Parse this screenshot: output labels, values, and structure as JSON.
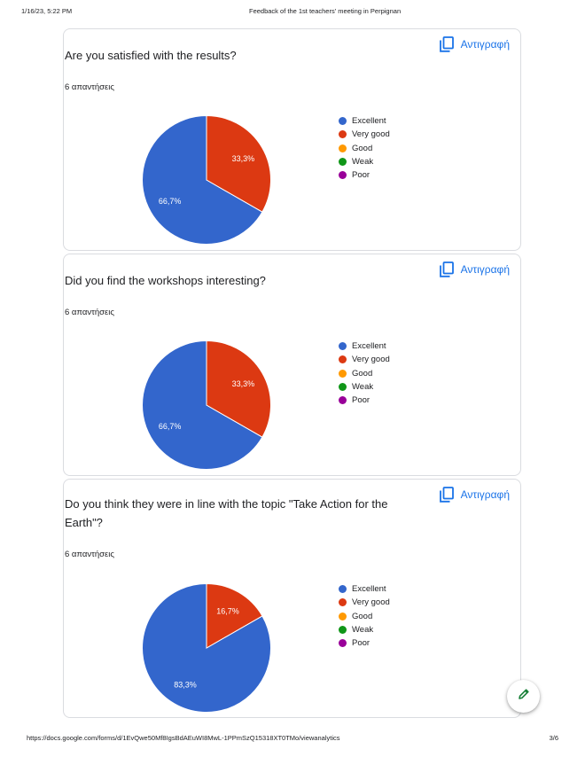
{
  "header": {
    "datetime": "1/16/23, 5:22 PM",
    "doc_title": "Feedback of the 1st teachers' meeting in Perpignan"
  },
  "footer": {
    "url": "https://docs.google.com/forms/d/1EvQwe50Mf8IgsBdAEuWI8MwL-1PPmSzQ15318XT0TMo/viewanalytics",
    "page": "3/6"
  },
  "copy_label": "Αντιγραφή",
  "colors": {
    "Excellent": "#3366cc",
    "Very good": "#dc3912",
    "Good": "#ff9900",
    "Weak": "#109618",
    "Poor": "#990099",
    "copy_accent": "#1a73e8",
    "edit_accent": "#188038"
  },
  "icons": {
    "copy": "copy-icon",
    "edit": "pencil-icon"
  },
  "cards": [
    {
      "question": "Are you satisfied with the results?",
      "responses": "6 απαντήσεις",
      "legend": [
        "Excellent",
        "Very good",
        "Good",
        "Weak",
        "Poor"
      ]
    },
    {
      "question": "Did you find the workshops interesting?",
      "responses": "6 απαντήσεις",
      "legend": [
        "Excellent",
        "Very good",
        "Good",
        "Weak",
        "Poor"
      ]
    },
    {
      "question": "Do you think they were in line with the topic \"Take Action for the Earth\"?",
      "responses": "6 απαντήσεις",
      "legend": [
        "Excellent",
        "Very good",
        "Good",
        "Weak",
        "Poor"
      ]
    }
  ],
  "chart_data": [
    {
      "type": "pie",
      "title": "Are you satisfied with the results?",
      "categories": [
        "Excellent",
        "Very good",
        "Good",
        "Weak",
        "Poor"
      ],
      "values": [
        66.7,
        33.3,
        0,
        0,
        0
      ],
      "slice_labels": [
        "66,7%",
        "33,3%",
        "",
        "",
        ""
      ],
      "legend_position": "right"
    },
    {
      "type": "pie",
      "title": "Did you find the workshops interesting?",
      "categories": [
        "Excellent",
        "Very good",
        "Good",
        "Weak",
        "Poor"
      ],
      "values": [
        66.7,
        33.3,
        0,
        0,
        0
      ],
      "slice_labels": [
        "66,7%",
        "33,3%",
        "",
        "",
        ""
      ],
      "legend_position": "right"
    },
    {
      "type": "pie",
      "title": "Do you think they were in line with the topic \"Take Action for the Earth\"?",
      "categories": [
        "Excellent",
        "Very good",
        "Good",
        "Weak",
        "Poor"
      ],
      "values": [
        83.3,
        16.7,
        0,
        0,
        0
      ],
      "slice_labels": [
        "83,3%",
        "16,7%",
        "",
        "",
        ""
      ],
      "legend_position": "right"
    }
  ]
}
